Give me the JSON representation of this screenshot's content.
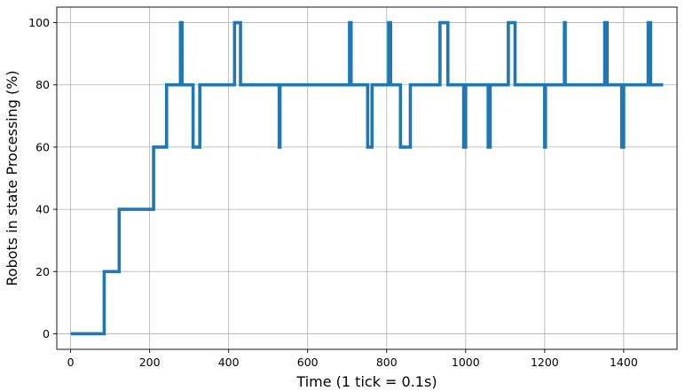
{
  "chart_data": {
    "type": "line",
    "step": true,
    "title": "",
    "xlabel": "Time (1 tick = 0.1s)",
    "ylabel": "Robots in state Processing (%)",
    "xlim": [
      -35,
      1535
    ],
    "ylim": [
      -5,
      105
    ],
    "xticks": [
      0,
      200,
      400,
      600,
      800,
      1000,
      1200,
      1400
    ],
    "yticks": [
      0,
      20,
      40,
      60,
      80,
      100
    ],
    "grid": true,
    "colors": {
      "series": "#1f77b4"
    },
    "series": [
      {
        "x": [
          0,
          85,
          123,
          210,
          243,
          278,
          282,
          310,
          327,
          415,
          430,
          528,
          530,
          706,
          710,
          752,
          763,
          790,
          805,
          810,
          835,
          860,
          935,
          955,
          995,
          1000,
          1057,
          1062,
          1108,
          1125,
          1200,
          1202,
          1250,
          1252,
          1352,
          1358,
          1395,
          1400,
          1462,
          1468,
          1500
        ],
        "y": [
          0,
          20,
          40,
          60,
          80,
          100,
          80,
          60,
          80,
          100,
          80,
          60,
          80,
          100,
          80,
          60,
          80,
          80,
          100,
          80,
          60,
          80,
          100,
          80,
          60,
          80,
          60,
          80,
          100,
          80,
          60,
          80,
          100,
          80,
          100,
          80,
          60,
          80,
          100,
          80,
          80
        ]
      }
    ]
  }
}
